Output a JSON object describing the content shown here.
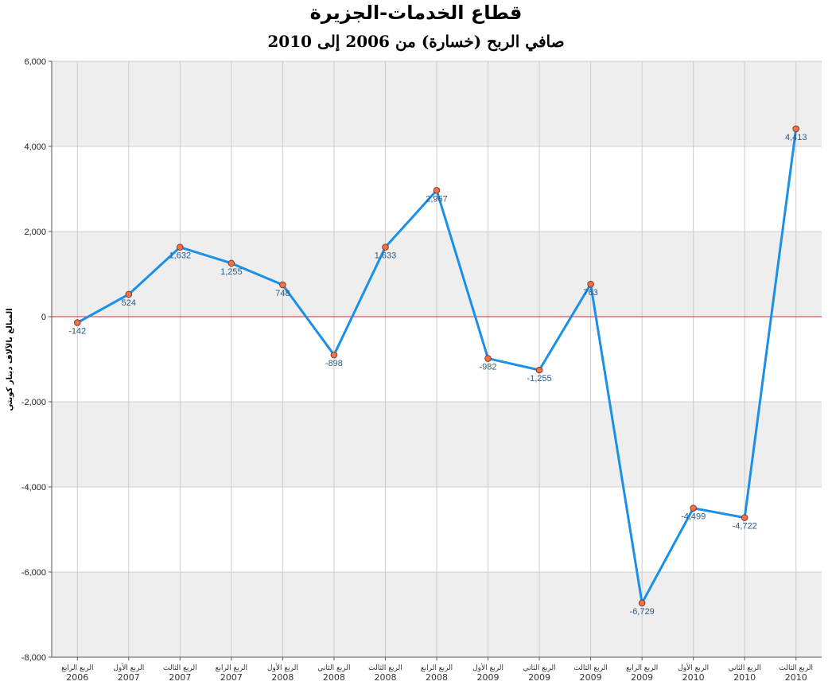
{
  "chart_data": {
    "type": "line",
    "title": "قطاع الخدمات-الجزيرة",
    "subtitle": "صافي الربح (خسارة) من 2006 إلى 2010",
    "ylabel": "المبالغ بالآلاف دينار كويتي",
    "xlabel": "",
    "ylim": [
      -8000,
      6000
    ],
    "yticks": [
      6000,
      4000,
      2000,
      0,
      -2000,
      -4000,
      -6000,
      -8000
    ],
    "ytick_labels": [
      "6,000",
      "4,000",
      "2,000",
      "0",
      "-2,000",
      "-4,000",
      "-6,000",
      "-8,000"
    ],
    "grid": true,
    "colors": {
      "line": "#1a90e8",
      "marker": "#f07050",
      "zero_line": "#d03030",
      "band": "#eeeeee"
    },
    "categories": [
      {
        "quarter": "الربع الرابع",
        "year": "2006"
      },
      {
        "quarter": "الربع الأول",
        "year": "2007"
      },
      {
        "quarter": "الربع الثالث",
        "year": "2007"
      },
      {
        "quarter": "الربع الرابع",
        "year": "2007"
      },
      {
        "quarter": "الربع الأول",
        "year": "2008"
      },
      {
        "quarter": "الربع الثاني",
        "year": "2008"
      },
      {
        "quarter": "الربع الثالث",
        "year": "2008"
      },
      {
        "quarter": "الربع الرابع",
        "year": "2008"
      },
      {
        "quarter": "الربع الأول",
        "year": "2009"
      },
      {
        "quarter": "الربع الثاني",
        "year": "2009"
      },
      {
        "quarter": "الربع الثالث",
        "year": "2009"
      },
      {
        "quarter": "الربع الرابع",
        "year": "2009"
      },
      {
        "quarter": "الربع الأول",
        "year": "2010"
      },
      {
        "quarter": "الربع الثاني",
        "year": "2010"
      },
      {
        "quarter": "الربع الثالث",
        "year": "2010"
      }
    ],
    "values": [
      -142,
      524,
      1632,
      1255,
      748,
      -898,
      1633,
      2967,
      -982,
      -1255,
      763,
      -6729,
      -4499,
      -4722,
      4413
    ],
    "labels": [
      "-142",
      "524",
      "1,632",
      "1,255",
      "748",
      "-898",
      "1,633",
      "2,967",
      "-982",
      "-1,255",
      "763",
      "-6,729",
      "-4,499",
      "-4,722",
      "4,413"
    ]
  }
}
